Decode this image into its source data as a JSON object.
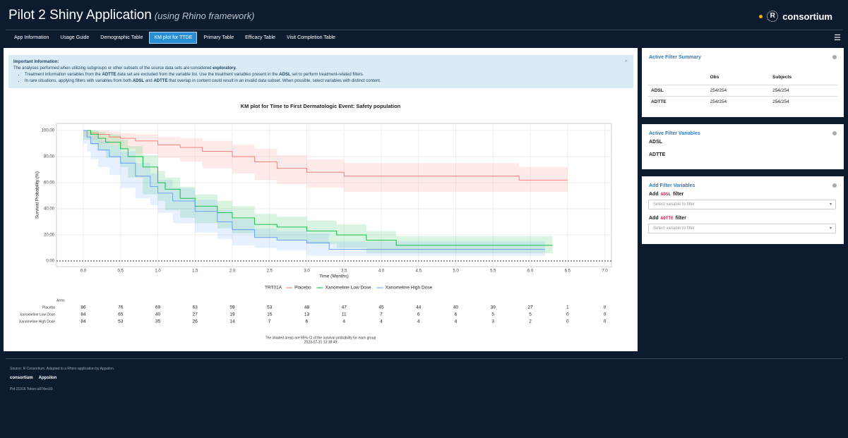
{
  "header": {
    "title": "Pilot 2 Shiny Application",
    "subtitle": "(using Rhino framework)",
    "logo": "consortium"
  },
  "nav": {
    "tabs": [
      "App Information",
      "Usage Guide",
      "Demographic Table",
      "KM plot for TTDE",
      "Primary Table",
      "Efficacy Table",
      "Visit Completion Table"
    ],
    "active": 3
  },
  "info": {
    "title": "Important Information:",
    "line": [
      "The analyses performed when utilizing subgroups or other subsets of the source data sets are considered ",
      "exploratory."
    ],
    "bullets": [
      [
        "Treatment information variables from the ",
        "ADTTE",
        " data set are excluded from the variable list. Use the treatment variables present in the ",
        "ADSL",
        " set to perform treatment-related filters."
      ],
      [
        "In rare situations, applying filters with variables from both ",
        "ADSL",
        " and ",
        "ADTTE",
        " that overlap in content could result in an invalid data subset. When possible, select variables with distinct content."
      ]
    ]
  },
  "chart_data": {
    "type": "km",
    "title": "KM plot for Time to First Dermatologic Event: Safety population",
    "x_label": "Time (Months)",
    "y_label": "Survival Probability (%)",
    "xlim": [
      -0.36,
      7.09
    ],
    "ylim": [
      -4.3,
      105.4
    ],
    "xticks": [
      {
        "value": 0,
        "label": "0.0"
      },
      {
        "value": 0.5,
        "label": "0.5"
      },
      {
        "value": 1,
        "label": "1.0"
      },
      {
        "value": 1.5,
        "label": "1.5"
      },
      {
        "value": 2,
        "label": "2.0"
      },
      {
        "value": 2.5,
        "label": "2.5"
      },
      {
        "value": 3,
        "label": "3.0"
      },
      {
        "value": 3.5,
        "label": "3.5"
      },
      {
        "value": 4,
        "label": "4.0"
      },
      {
        "value": 4.5,
        "label": "4.5"
      },
      {
        "value": 5,
        "label": "5.0"
      },
      {
        "value": 5.5,
        "label": "5.5"
      },
      {
        "value": 6,
        "label": "6.0"
      },
      {
        "value": 6.5,
        "label": "6.5"
      },
      {
        "value": 7,
        "label": "7.0"
      }
    ],
    "yticks": [
      {
        "value": 0,
        "label": "0.00"
      },
      {
        "value": 20,
        "label": "20.00"
      },
      {
        "value": 40,
        "label": "40.00"
      },
      {
        "value": 60,
        "label": "60.00"
      },
      {
        "value": 80,
        "label": "80.00"
      },
      {
        "value": 100,
        "label": "100.00"
      }
    ],
    "grid": true,
    "legend_title": "TRT01A",
    "series": [
      {
        "name": "Placebo",
        "color": "#f8766d",
        "x": [
          0,
          0.1,
          0.2,
          0.35,
          0.5,
          0.7,
          1.0,
          1.3,
          1.6,
          2.0,
          2.3,
          2.6,
          3.0,
          3.5,
          5.85,
          6.5
        ],
        "values": [
          100,
          98,
          97,
          95,
          94,
          92,
          89,
          87,
          84,
          80,
          76,
          71,
          68,
          65,
          62,
          62
        ],
        "lower": [
          100,
          95,
          93,
          90,
          88,
          86,
          82,
          79,
          76,
          71,
          67,
          62,
          59,
          56,
          53,
          53
        ],
        "upper": [
          100,
          100,
          100,
          99,
          98,
          97,
          95,
          94,
          92,
          89,
          86,
          81,
          78,
          75,
          72,
          72
        ]
      },
      {
        "name": "Xanomeline Low Dose",
        "color": "#00ba38",
        "x": [
          0,
          0.1,
          0.2,
          0.3,
          0.5,
          0.6,
          0.8,
          1.0,
          1.1,
          1.3,
          1.5,
          1.8,
          2.0,
          2.3,
          2.6,
          3.0,
          3.4,
          3.8,
          4.2,
          6.3
        ],
        "values": [
          100,
          97,
          94,
          91,
          86,
          80,
          72,
          60,
          55,
          48,
          42,
          37,
          33,
          28,
          26,
          23,
          20,
          16,
          12,
          12
        ],
        "lower": [
          100,
          93,
          89,
          85,
          79,
          72,
          64,
          51,
          46,
          39,
          33,
          29,
          25,
          21,
          18,
          16,
          13,
          10,
          6,
          6
        ],
        "upper": [
          100,
          100,
          99,
          97,
          93,
          88,
          81,
          69,
          64,
          57,
          51,
          46,
          42,
          36,
          34,
          31,
          28,
          23,
          19,
          19
        ]
      },
      {
        "name": "Xanomeline High Dose",
        "color": "#619cff",
        "x": [
          0,
          0.05,
          0.1,
          0.2,
          0.35,
          0.5,
          0.7,
          0.9,
          1.0,
          1.2,
          1.5,
          1.8,
          2.0,
          2.3,
          2.6,
          3.0,
          3.3,
          6.2
        ],
        "values": [
          100,
          95,
          90,
          85,
          80,
          75,
          65,
          57,
          52,
          46,
          38,
          30,
          24,
          18,
          16,
          14,
          9,
          9
        ],
        "lower": [
          100,
          90,
          84,
          78,
          72,
          66,
          56,
          48,
          43,
          37,
          29,
          22,
          17,
          12,
          10,
          8,
          4,
          4
        ],
        "upper": [
          100,
          99,
          96,
          92,
          88,
          84,
          75,
          67,
          62,
          56,
          47,
          39,
          32,
          25,
          23,
          21,
          15,
          15
        ]
      }
    ],
    "risk_table": {
      "title": "Arms",
      "rows": [
        {
          "name": "Placebo",
          "values": [
            86,
            76,
            69,
            63,
            59,
            53,
            48,
            47,
            45,
            44,
            40,
            39,
            27,
            1,
            0
          ]
        },
        {
          "name": "Xanomeline Low Dose",
          "values": [
            84,
            65,
            40,
            27,
            19,
            15,
            13,
            11,
            7,
            6,
            6,
            5,
            5,
            0,
            0
          ]
        },
        {
          "name": "Xanomeline High Dose",
          "values": [
            84,
            53,
            35,
            26,
            14,
            7,
            6,
            4,
            4,
            4,
            4,
            3,
            2,
            0,
            0
          ]
        }
      ]
    },
    "caption": [
      "The shaded areas are 95% CI of the survival probability for each group",
      "2023-07-31 13:38:49"
    ]
  },
  "sidebar": {
    "summary": {
      "title": "Active Filter Summary",
      "columns": [
        "Obs",
        "Subjects"
      ],
      "rows": [
        [
          "ADSL",
          "254/254",
          "254/254"
        ],
        [
          "ADTTE",
          "254/254",
          "254/254"
        ]
      ]
    },
    "variables": {
      "title": "Active Filter Variables",
      "items": [
        "ADSL",
        "ADTTE"
      ]
    },
    "add": {
      "title": "Add Filter Variables",
      "filters": [
        [
          "Add",
          "ADSL",
          "filter"
        ],
        [
          "Add",
          "ADTTE",
          "filter"
        ]
      ],
      "placeholder": "Select variable to filter"
    }
  },
  "footer": {
    "source": "Source: R Consortium. Adapted to a Rhino application by Appsilon.",
    "logos": [
      "consortium",
      "Appsilon"
    ],
    "pid": "Pid:21916 Token:a874ec03"
  }
}
